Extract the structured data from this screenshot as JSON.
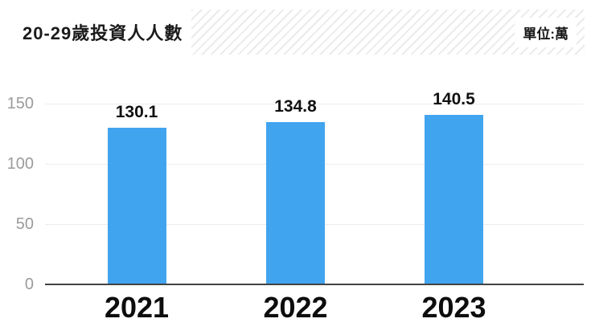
{
  "header": {
    "title": "20-29歲投資人人數",
    "unit_label": "單位:萬"
  },
  "chart_data": {
    "type": "bar",
    "title": "20-29歲投資人人數",
    "unit": "萬",
    "categories": [
      "2021",
      "2022",
      "2023"
    ],
    "values": [
      130.1,
      134.8,
      140.5
    ],
    "value_labels": "above-bars",
    "yticks": [
      0,
      50,
      100,
      150
    ],
    "ylim": [
      0,
      150
    ],
    "xlabel": "",
    "ylabel": "",
    "legend": "none",
    "grid": "horizontal-light",
    "colors": {
      "bar": "#41a4ef",
      "axis_line": "#434343",
      "gridline": "#ededed",
      "tick_label": "#9b9b9b",
      "text": "#111111",
      "band_stripe": "#ebebeb"
    }
  }
}
